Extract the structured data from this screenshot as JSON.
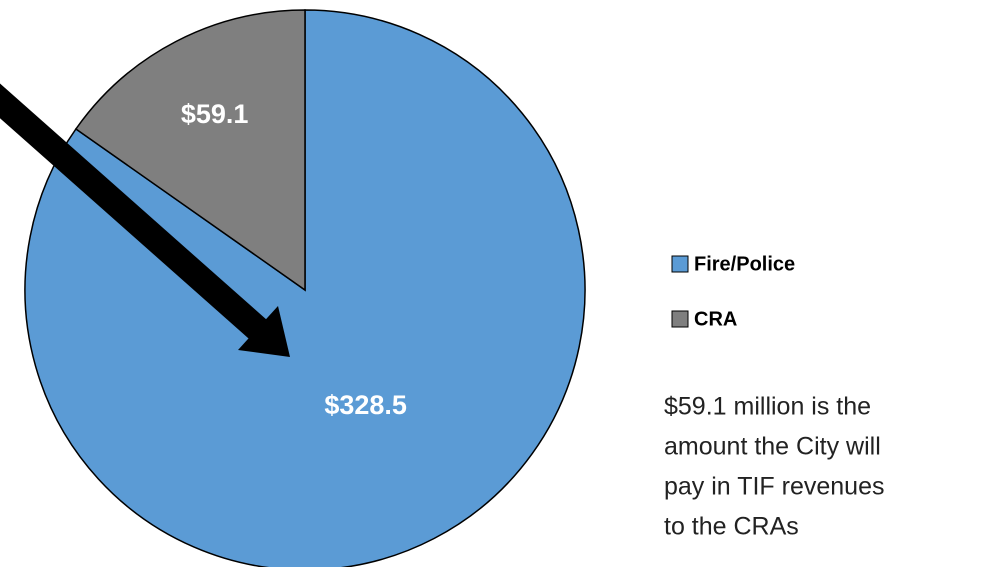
{
  "chart_data": {
    "type": "pie",
    "categories": [
      "Fire/Police",
      "CRA"
    ],
    "values": [
      328.5,
      59.1
    ],
    "value_labels": [
      "$328.5",
      "$59.1"
    ],
    "colors": [
      "#5b9bd5",
      "#7f7f7f"
    ],
    "legend": "right",
    "annotation": [
      "$59.1 million is the",
      "amount the City will",
      "pay in TIF revenues",
      "to the CRAs"
    ]
  }
}
